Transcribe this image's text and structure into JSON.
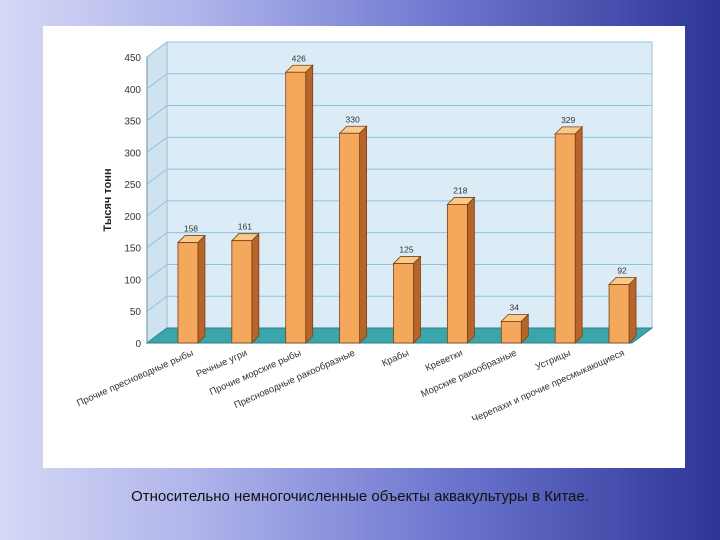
{
  "caption": "Относительно немногочисленные объекты аквакультуры в Китае.",
  "chart_data": {
    "type": "bar",
    "ylabel": "Тысяч тонн",
    "xlabel": "",
    "ylim": [
      0,
      450
    ],
    "yticks": [
      0,
      50,
      100,
      150,
      200,
      250,
      300,
      350,
      400,
      450
    ],
    "grid": true,
    "categories": [
      "Прочие пресноводные рыбы",
      "Речные угри",
      "Прочие морские рыбы",
      "Пресноводные ракообразные",
      "Крабы",
      "Креветки",
      "Морские ракообразные",
      "Устрицы",
      "Черепахи и прочие пресмыкающиеся"
    ],
    "values": [
      158,
      161,
      426,
      330,
      125,
      218,
      34,
      329,
      92
    ],
    "colors": {
      "bar_front": "#f3a85c",
      "bar_side": "#b8652c",
      "bar_top": "#f9c98a",
      "back_wall": "#dcecf7",
      "floor": "#3aa6ac",
      "grid": "#8ec3df"
    }
  }
}
